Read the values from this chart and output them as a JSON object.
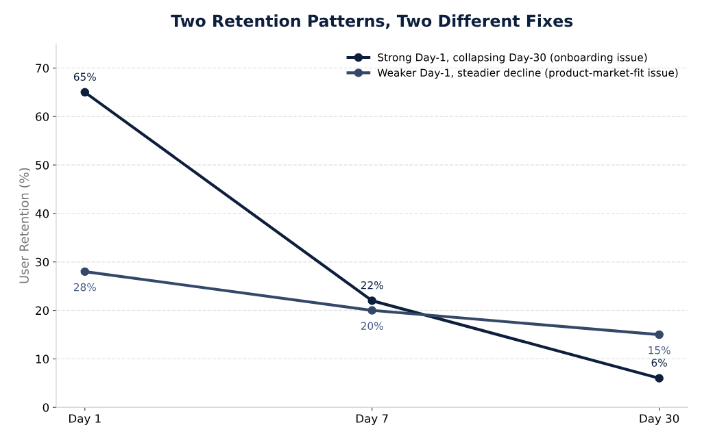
{
  "chart_data": {
    "type": "line",
    "title": "Two Retention Patterns, Two Different Fixes",
    "ylabel": "User Retention (%)",
    "categories": [
      "Day 1",
      "Day 7",
      "Day 30"
    ],
    "series": [
      {
        "name": "Strong Day-1, collapsing Day-30 (onboarding issue)",
        "color": "#0d1f3c",
        "values": [
          65,
          22,
          6
        ],
        "value_labels": [
          "65%",
          "22%",
          "6%"
        ]
      },
      {
        "name": "Weaker Day-1, steadier decline (product-market-fit issue)",
        "color": "#34486a",
        "values": [
          28,
          20,
          15
        ],
        "value_labels": [
          "28%",
          "20%",
          "15%"
        ]
      }
    ],
    "ylim": [
      0,
      75
    ],
    "yticks": [
      0,
      10,
      20,
      30,
      40,
      50,
      60,
      70
    ],
    "grid": "y",
    "legend": "top right",
    "marker": "circle",
    "line_style": "solid"
  }
}
